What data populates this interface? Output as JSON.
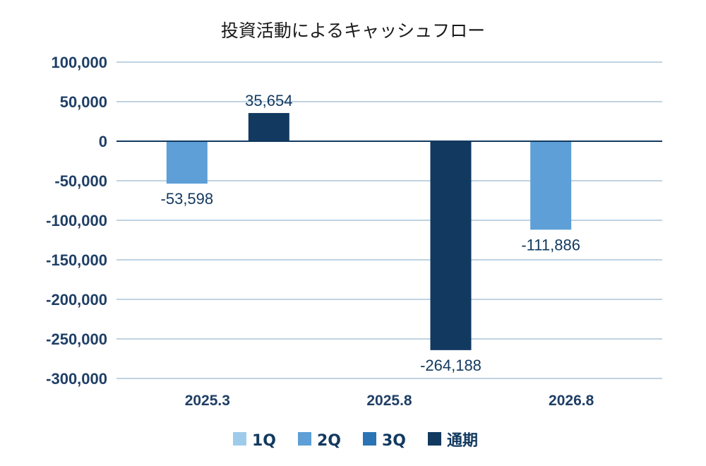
{
  "chart_data": {
    "type": "bar",
    "title": "投資活動によるキャッシュフロー",
    "xlabel": "",
    "ylabel": "",
    "categories": [
      "2025.3",
      "2025.8",
      "2026.8"
    ],
    "ylim": [
      -300000,
      100000
    ],
    "yticks": [
      100000,
      50000,
      0,
      -50000,
      -100000,
      -150000,
      -200000,
      -250000,
      -300000
    ],
    "ytick_labels": [
      "100,000",
      "50,000",
      "0",
      "-50,000",
      "-100,000",
      "-150,000",
      "-200,000",
      "-250,000",
      "-300,000"
    ],
    "grid": true,
    "legend_position": "bottom",
    "series": [
      {
        "name": "1Q",
        "color": "#9fcbea",
        "values": [
          null,
          null,
          null
        ],
        "labels": [
          null,
          null,
          null
        ]
      },
      {
        "name": "2Q",
        "color": "#5d9fd6",
        "values": [
          -53598,
          null,
          -111886
        ],
        "labels": [
          "-53,598",
          null,
          "-111,886"
        ]
      },
      {
        "name": "3Q",
        "color": "#2a74b5",
        "values": [
          null,
          null,
          null
        ],
        "labels": [
          null,
          null,
          null
        ]
      },
      {
        "name": "通期",
        "color": "#12395f",
        "values": [
          35654,
          -264188,
          null
        ],
        "labels": [
          "35,654",
          "-264,188",
          null
        ]
      }
    ]
  }
}
